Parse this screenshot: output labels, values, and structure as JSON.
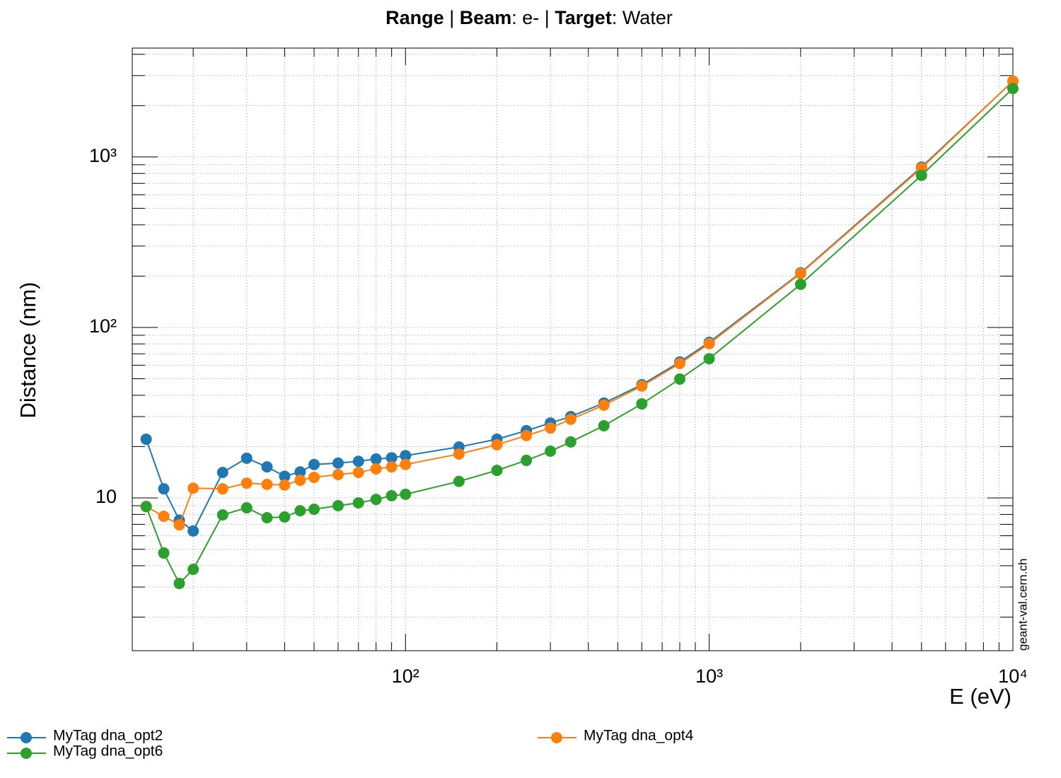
{
  "chart_data": {
    "type": "line",
    "title": [
      {
        "text": "Range",
        "bold": true
      },
      {
        "text": " | ",
        "bold": false
      },
      {
        "text": "Beam",
        "bold": true
      },
      {
        "text": ": e- | ",
        "bold": false
      },
      {
        "text": "Target",
        "bold": true
      },
      {
        "text": ": Water",
        "bold": false
      }
    ],
    "x_label": "E (eV)",
    "y_label": "Distance (nm)",
    "watermark": "geant-val.cern.ch",
    "log_x": true,
    "log_y": true,
    "grid": true,
    "xlim": [
      12.6,
      10000
    ],
    "ylim": [
      1.27,
      4350
    ],
    "xticks": [
      {
        "value": 100,
        "label": "10²"
      },
      {
        "value": 1000,
        "label": "10³"
      },
      {
        "value": 10000,
        "label": "10⁴"
      }
    ],
    "yticks": [
      10,
      {
        "value": 100,
        "label": "10²"
      },
      {
        "value": 1000,
        "label": "10³"
      }
    ],
    "xminorticks": [
      20,
      30,
      40,
      50,
      60,
      70,
      80,
      90,
      200,
      300,
      400,
      500,
      600,
      700,
      800,
      900,
      2000,
      3000,
      4000,
      5000,
      6000,
      7000,
      8000,
      9000
    ],
    "yminorticks": [
      2,
      3,
      4,
      5,
      6,
      7,
      8,
      9,
      20,
      30,
      40,
      50,
      60,
      70,
      80,
      90,
      200,
      300,
      400,
      500,
      600,
      700,
      800,
      900,
      2000,
      3000,
      4000
    ],
    "x": [
      14,
      16,
      18,
      20,
      25,
      30,
      35,
      40,
      45,
      50,
      60,
      70,
      80,
      90,
      100,
      150,
      200,
      250,
      300,
      350,
      450,
      600,
      800,
      1000,
      2000,
      5000,
      10000
    ],
    "series": [
      {
        "name": "MyTag dna_opt2",
        "color": "#1f77b4",
        "values": [
          22.1,
          11.3,
          7.4,
          6.4,
          14.1,
          17.1,
          15.2,
          13.4,
          14.2,
          15.7,
          16.0,
          16.4,
          16.9,
          17.2,
          17.7,
          19.9,
          22.1,
          24.8,
          27.5,
          30.0,
          36.0,
          46.1,
          62.7,
          81.8,
          209,
          872,
          2780
        ]
      },
      {
        "name": "MyTag dna_opt4",
        "color": "#ff7f0e",
        "values": [
          8.9,
          7.8,
          6.95,
          11.4,
          11.3,
          12.2,
          12.0,
          11.9,
          12.7,
          13.2,
          13.7,
          14.1,
          14.8,
          15.2,
          15.7,
          18.1,
          20.5,
          23.2,
          25.7,
          28.9,
          35.0,
          45.3,
          61.4,
          80.3,
          207,
          859,
          2790
        ]
      },
      {
        "name": "MyTag dna_opt6",
        "color": "#2ca02c",
        "values": [
          8.9,
          4.75,
          3.15,
          3.81,
          7.95,
          8.75,
          7.65,
          7.73,
          8.41,
          8.58,
          9.0,
          9.35,
          9.8,
          10.3,
          10.5,
          12.5,
          14.5,
          16.6,
          18.8,
          21.3,
          26.5,
          35.6,
          49.8,
          65.6,
          179,
          780,
          2520
        ]
      }
    ]
  }
}
